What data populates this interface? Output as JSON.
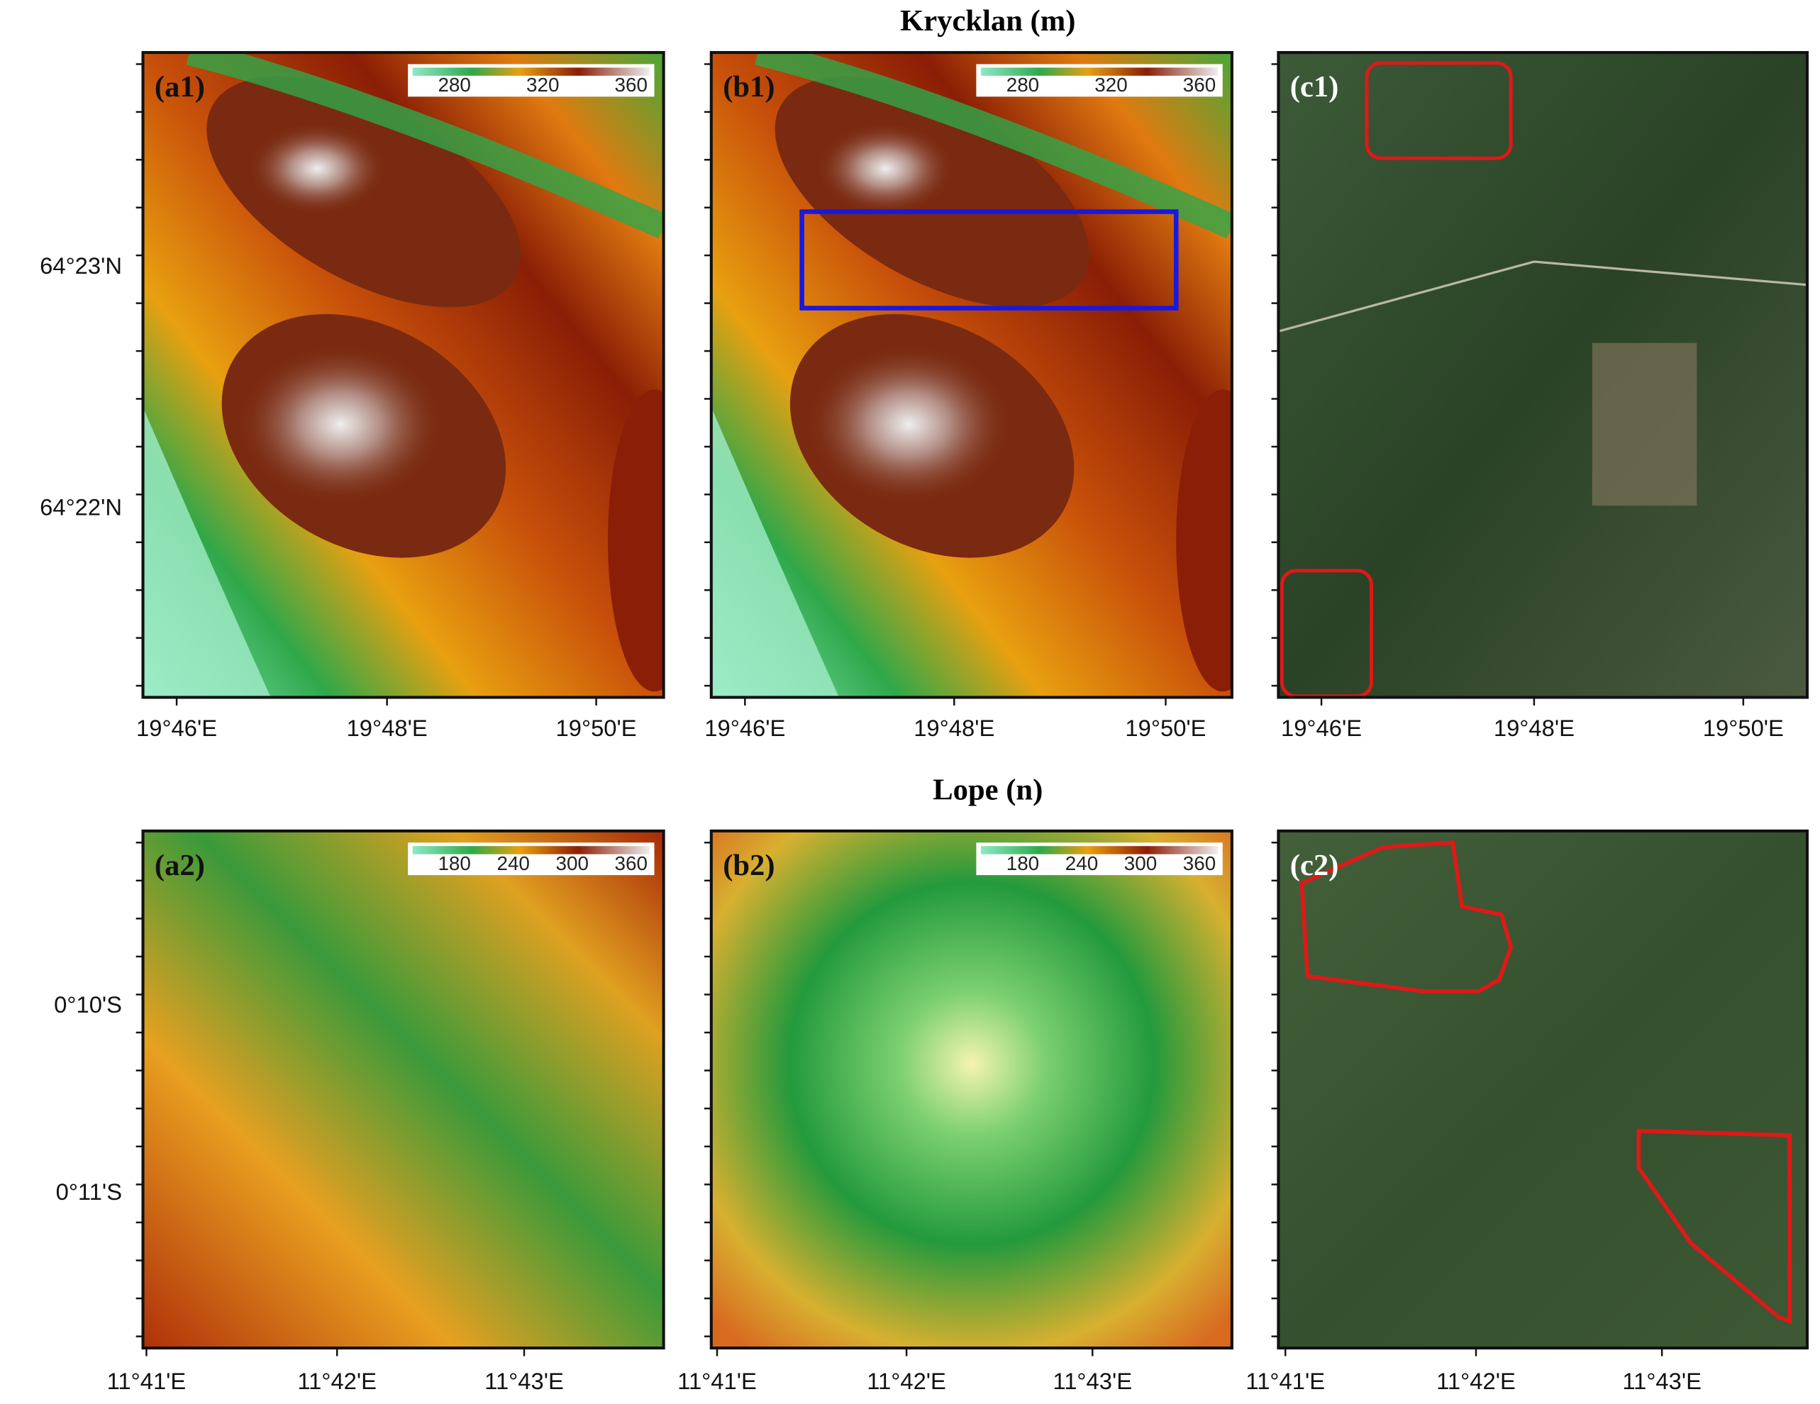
{
  "rows": [
    {
      "title": "Krycklan (m)",
      "y_ticks": [
        "64°23'N",
        "64°22'N"
      ],
      "x_ticks": [
        "19°46'E",
        "19°48'E",
        "19°50'E"
      ],
      "colorbar_ticks": [
        "280",
        "320",
        "360"
      ],
      "panels": [
        {
          "label": "(a1)"
        },
        {
          "label": "(b1)"
        },
        {
          "label": "(c1)"
        }
      ]
    },
    {
      "title": "Lope (n)",
      "y_ticks": [
        "0°10'S",
        "0°11'S"
      ],
      "x_ticks": [
        "11°41'E",
        "11°42'E",
        "11°43'E"
      ],
      "colorbar_ticks": [
        "180",
        "240",
        "300",
        "360"
      ],
      "panels": [
        {
          "label": "(a2)"
        },
        {
          "label": "(b2)"
        },
        {
          "label": "(c2)"
        }
      ]
    }
  ]
}
